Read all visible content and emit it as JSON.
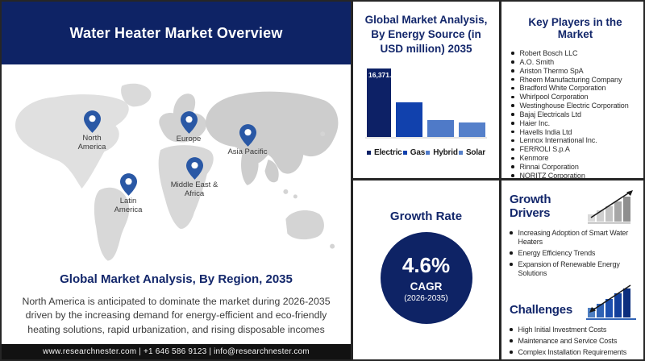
{
  "header": {
    "title": "Water Heater Market Overview"
  },
  "map": {
    "pins": [
      {
        "label": "North America"
      },
      {
        "label": "Europe"
      },
      {
        "label": "Asia Pacific"
      },
      {
        "label": "Latin America"
      },
      {
        "label": "Middle East & Africa"
      }
    ],
    "subtitle": "Global Market Analysis, By Region, 2035",
    "description": "North America is anticipated to dominate the market during 2026-2035 driven by the increasing demand for energy-efficient and eco-friendly heating solutions, rapid urbanization, and rising disposable incomes"
  },
  "footer": {
    "text": "www.researchnester.com | +1 646 586 9123 | info@researchnester.com"
  },
  "energy_panel": {
    "title": "Global Market Analysis, By Energy Source (in USD million) 2035",
    "value_label": "16,371.0",
    "legend": [
      "Electric",
      "Gas",
      "Hybrid",
      "Solar"
    ]
  },
  "growth_panel": {
    "title": "Growth Rate",
    "value": "4.6%",
    "metric": "CAGR",
    "period": "(2026-2035)"
  },
  "players_panel": {
    "title": "Key Players in the Market",
    "players": [
      "Robert Bosch LLC",
      "A.O. Smith",
      "Ariston Thermo SpA",
      "Rheem Manufacturing Company",
      "Bradford White Corporation",
      "Whirlpool Corporation",
      "Westinghouse Electric Corporation",
      "Bajaj Electricals Ltd",
      "Haier Inc.",
      "Havells India Ltd",
      "Lennox International Inc.",
      "FERROLI S.p.A",
      "Kenmore",
      "Rinnai Corporation",
      "NORITZ Corporation"
    ]
  },
  "drivers_panel": {
    "title": "Growth Drivers",
    "items": [
      "Increasing Adoption of Smart Water Heaters",
      "Energy Efficiency Trends",
      "Expansion of Renewable Energy Solutions"
    ]
  },
  "challenges_panel": {
    "title": "Challenges",
    "items": [
      "High Initial Investment Costs",
      "Maintenance and Service Costs",
      "Complex Installation Requirements"
    ]
  },
  "colors": {
    "navy": "#0e2365",
    "panel_title_text": "#13276b",
    "pin_blue": "#2a58a5",
    "map_land": "#d8d8d8",
    "footer_bg": "#121212",
    "bar_electric": "#0d2166",
    "bar_gas": "#1141ad",
    "bar_hybrid": "#4f7ac8",
    "bar_solar": "#5580ca"
  },
  "chart_data": {
    "type": "bar",
    "title": "Global Market Analysis, By Energy Source (in USD million) 2035",
    "categories": [
      "Electric",
      "Gas",
      "Hybrid",
      "Solar"
    ],
    "values": [
      16371.0,
      8300,
      4050,
      3550
    ],
    "labeled_points": {
      "Electric": "16,371.0"
    },
    "ylabel": "USD million",
    "year": "2035",
    "ylim": [
      0,
      17000
    ],
    "grid": false,
    "legend_position": "bottom",
    "bar_colors": [
      "#0d2166",
      "#1141ad",
      "#4f7ac8",
      "#5580ca"
    ],
    "note": "Only the Electric bar carries a data label; Gas, Hybrid and Solar values are estimated from bar heights"
  }
}
